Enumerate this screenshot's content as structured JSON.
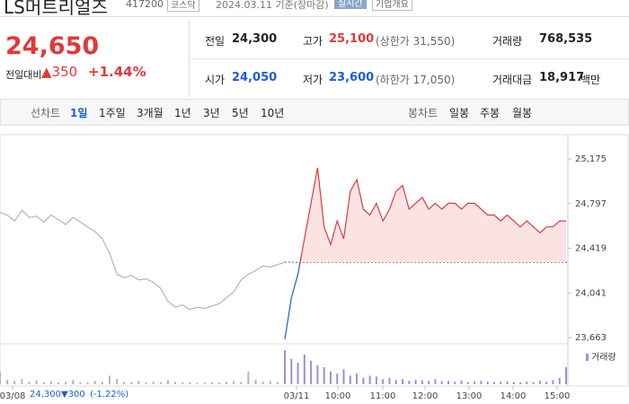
{
  "header": {
    "name": "LS머트리얼즈",
    "code": "417200",
    "market": "코스닥",
    "date": "2024.03.11 기준(장마감)",
    "realtime": "실시간",
    "overview": "기업개요"
  },
  "price": {
    "current": "24,650",
    "change_label": "전일대비",
    "change": "▲350",
    "rate": "+1.44%"
  },
  "stats": [
    [
      {
        "label": "전일",
        "value": "24,300"
      },
      {
        "label": "고가",
        "value": "25,100",
        "note": "(상한가 31,550)"
      },
      {
        "label": "거래량",
        "value": "768,535"
      }
    ],
    [
      {
        "label": "시가",
        "value": "24,050"
      },
      {
        "label": "저가",
        "value": "23,600",
        "note": "(하한가 17,050)"
      },
      {
        "label": "거래대금",
        "value": "18,917",
        "unit": "백만"
      }
    ]
  ],
  "tabs": {
    "line": "선차트",
    "periods": [
      "1일",
      "1주일",
      "3개월",
      "1년",
      "3년",
      "5년",
      "10년"
    ],
    "candle": "봉차트",
    "candle_periods": [
      "일봉",
      "주봉",
      "월봉"
    ]
  },
  "chart_data": {
    "type": "line",
    "x_labels": [
      "03/08",
      "03/11",
      "10:00",
      "11:00",
      "12:00",
      "13:00",
      "14:00",
      "15:00"
    ],
    "ylim": [
      23633,
      25380
    ],
    "yticks": [
      {
        "value": 25175,
        "label": "25,175"
      },
      {
        "value": 24797,
        "label": "24,797"
      },
      {
        "value": 24419,
        "label": "24,419"
      },
      {
        "value": 24041,
        "label": "24,041"
      },
      {
        "value": 23663,
        "label": "23,663"
      }
    ],
    "baseline": 24300,
    "series": [
      {
        "color": "#b5b5b5",
        "values": [
          24720,
          24700,
          24650,
          24740,
          24680,
          24690,
          24640,
          24700,
          24660,
          24620,
          24680,
          24640,
          24600,
          24560,
          24500,
          24380,
          24200,
          24170,
          24190,
          24150,
          24160,
          24130,
          24080,
          23970,
          23920,
          23940,
          23900,
          23920,
          23910,
          23930,
          23950,
          24000,
          24050,
          24150,
          24200,
          24230,
          24270,
          24260,
          24280,
          24300
        ]
      },
      {
        "color": "#e03a3a",
        "values": [
          23650,
          24000,
          24200,
          24500,
          24800,
          25100,
          24600,
          24450,
          24650,
          24500,
          24900,
          25000,
          24750,
          24700,
          24800,
          24650,
          24750,
          24900,
          24950,
          24750,
          24800,
          24850,
          24750,
          24800,
          24750,
          24800,
          24800,
          24750,
          24800,
          24800,
          24750,
          24700,
          24700,
          24650,
          24700,
          24650,
          24600,
          24650,
          24600,
          24550,
          24600,
          24600,
          24650,
          24650
        ]
      }
    ],
    "volume": {
      "name": "거래량",
      "series": [
        {
          "color": "#b5b5b5",
          "values": [
            30,
            10,
            8,
            12,
            6,
            9,
            5,
            7,
            4,
            6,
            10,
            5,
            4,
            8,
            6,
            20,
            12,
            6,
            5,
            8,
            4,
            6,
            5,
            10,
            6,
            4,
            5,
            3,
            4,
            5,
            4,
            6,
            8,
            5,
            30,
            10,
            6,
            8,
            5,
            12
          ]
        },
        {
          "color": "#9d8fd6",
          "values": [
            80,
            60,
            50,
            70,
            55,
            45,
            40,
            30,
            25,
            35,
            20,
            25,
            15,
            20,
            18,
            12,
            15,
            10,
            12,
            8,
            10,
            9,
            8,
            12,
            7,
            8,
            6,
            9,
            5,
            7,
            8,
            6,
            5,
            6,
            7,
            5,
            4,
            6,
            5,
            8,
            6,
            10,
            15,
            40
          ]
        }
      ]
    }
  },
  "footer": {
    "price": "24,300",
    "change": "▼300",
    "rate": "(-1.22%)"
  }
}
